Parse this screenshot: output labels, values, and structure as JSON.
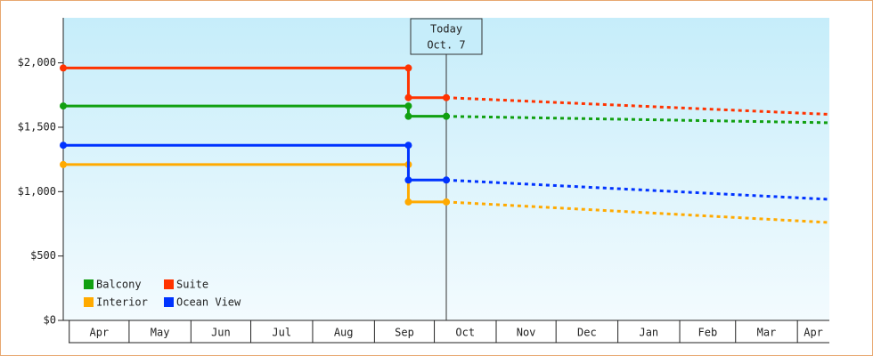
{
  "chart_data": {
    "type": "line",
    "x": [
      -3,
      170,
      170,
      189,
      381
    ],
    "series": [
      {
        "name": "Balcony",
        "color": "#11a011",
        "values": [
          1665,
          1665,
          1585,
          1585,
          1535
        ]
      },
      {
        "name": "Suite",
        "color": "#ff3300",
        "values": [
          1960,
          1960,
          1730,
          1730,
          1600
        ]
      },
      {
        "name": "Interior",
        "color": "#ffaa00",
        "values": [
          1210,
          1210,
          920,
          920,
          760
        ]
      },
      {
        "name": "Ocean View",
        "color": "#0033ff",
        "values": [
          1360,
          1360,
          1090,
          1090,
          940
        ]
      }
    ],
    "xlim": [
      -3,
      381
    ],
    "xticks": [
      {
        "value": 0,
        "label": "Apr"
      },
      {
        "value": 30,
        "label": "May"
      },
      {
        "value": 61,
        "label": "Jun"
      },
      {
        "value": 91,
        "label": "Jul"
      },
      {
        "value": 122,
        "label": "Aug"
      },
      {
        "value": 153,
        "label": "Sep"
      },
      {
        "value": 183,
        "label": "Oct"
      },
      {
        "value": 214,
        "label": "Nov"
      },
      {
        "value": 244,
        "label": "Dec"
      },
      {
        "value": 275,
        "label": "Jan"
      },
      {
        "value": 306,
        "label": "Feb"
      },
      {
        "value": 334,
        "label": "Mar"
      },
      {
        "value": 365,
        "label": "Apr"
      }
    ],
    "ylim": [
      0,
      2350
    ],
    "yticks": [
      {
        "value": 0,
        "label": "$0"
      },
      {
        "value": 500,
        "label": "$500"
      },
      {
        "value": 1000,
        "label": "$1,000"
      },
      {
        "value": 1500,
        "label": "$1,500"
      },
      {
        "value": 2000,
        "label": "$2,000"
      }
    ],
    "today": {
      "x": 189,
      "label": [
        "Today",
        "Oct. 7"
      ]
    },
    "legend": "lower left"
  }
}
